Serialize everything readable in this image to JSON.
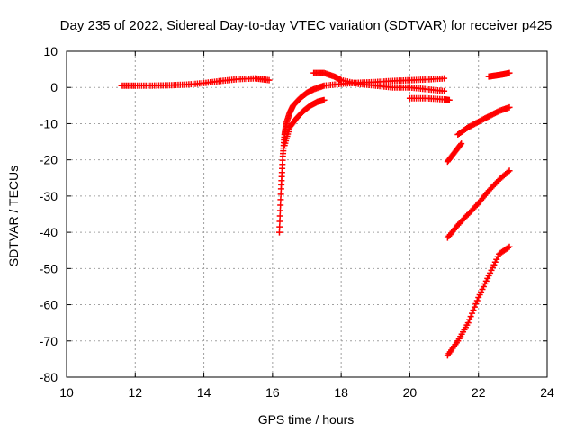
{
  "chart_data": {
    "type": "scatter",
    "title": "Day 235 of 2022, Sidereal Day-to-day VTEC variation (SDTVAR) for receiver p425",
    "xlabel": "GPS time / hours",
    "ylabel": "SDTVAR / TECUs",
    "xlim": [
      10,
      24
    ],
    "ylim": [
      -80,
      10
    ],
    "xticks": [
      10,
      12,
      14,
      16,
      18,
      20,
      22,
      24
    ],
    "yticks": [
      10,
      0,
      -10,
      -20,
      -30,
      -40,
      -50,
      -60,
      -70,
      -80
    ],
    "grid": true,
    "legend": "none",
    "marker": "+",
    "color": "#ff0000",
    "series": [
      {
        "x": [
          11.6,
          12.0,
          12.5,
          13.0,
          13.5,
          14.0,
          14.5,
          15.0,
          15.5,
          15.9
        ],
        "y": [
          0.5,
          0.5,
          0.5,
          0.6,
          0.8,
          1.2,
          1.8,
          2.3,
          2.5,
          2.0
        ]
      },
      {
        "x": [
          16.2,
          16.25,
          16.3,
          16.35,
          16.4,
          16.5,
          16.6,
          16.8,
          17.0,
          17.2,
          17.5,
          18.0,
          18.5,
          19.0,
          19.5,
          20.0,
          20.5,
          21.0
        ],
        "y": [
          -40,
          -28,
          -19,
          -13,
          -10,
          -7,
          -5,
          -3,
          -1.5,
          -0.5,
          0.5,
          1.0,
          1.3,
          1.5,
          1.8,
          2.0,
          2.2,
          2.5
        ]
      },
      {
        "x": [
          16.35,
          16.5,
          16.7,
          16.9,
          17.1,
          17.3,
          17.5
        ],
        "y": [
          -16,
          -11,
          -8.5,
          -6.5,
          -5,
          -4,
          -3.5
        ]
      },
      {
        "x": [
          17.2,
          17.5,
          17.8,
          18.0,
          18.5,
          19.0,
          19.5,
          20.0,
          20.5,
          21.0
        ],
        "y": [
          4,
          4,
          3,
          2,
          1,
          0.5,
          0,
          0,
          -0.5,
          -1
        ]
      },
      {
        "x": [
          20.0,
          20.5,
          21.0,
          21.15
        ],
        "y": [
          -3,
          -3,
          -3.3,
          -3.5
        ]
      },
      {
        "x": [
          21.1,
          21.3,
          21.5
        ],
        "y": [
          -20.5,
          -18,
          -15.5
        ]
      },
      {
        "x": [
          21.4,
          21.7,
          22.0,
          22.3,
          22.6,
          22.9
        ],
        "y": [
          -13,
          -11,
          -9.5,
          -8,
          -6.5,
          -5.5
        ]
      },
      {
        "x": [
          21.1,
          21.4,
          21.7,
          22.0,
          22.3,
          22.6,
          22.9
        ],
        "y": [
          -41.5,
          -38,
          -35,
          -32,
          -28.5,
          -25.5,
          -23
        ]
      },
      {
        "x": [
          21.1,
          21.4,
          21.7,
          22.0,
          22.3,
          22.6,
          22.9
        ],
        "y": [
          -74,
          -70,
          -65,
          -58,
          -52,
          -46,
          -44
        ]
      },
      {
        "x": [
          22.3,
          22.5,
          22.7,
          22.9
        ],
        "y": [
          3,
          3.3,
          3.6,
          4
        ]
      }
    ]
  }
}
